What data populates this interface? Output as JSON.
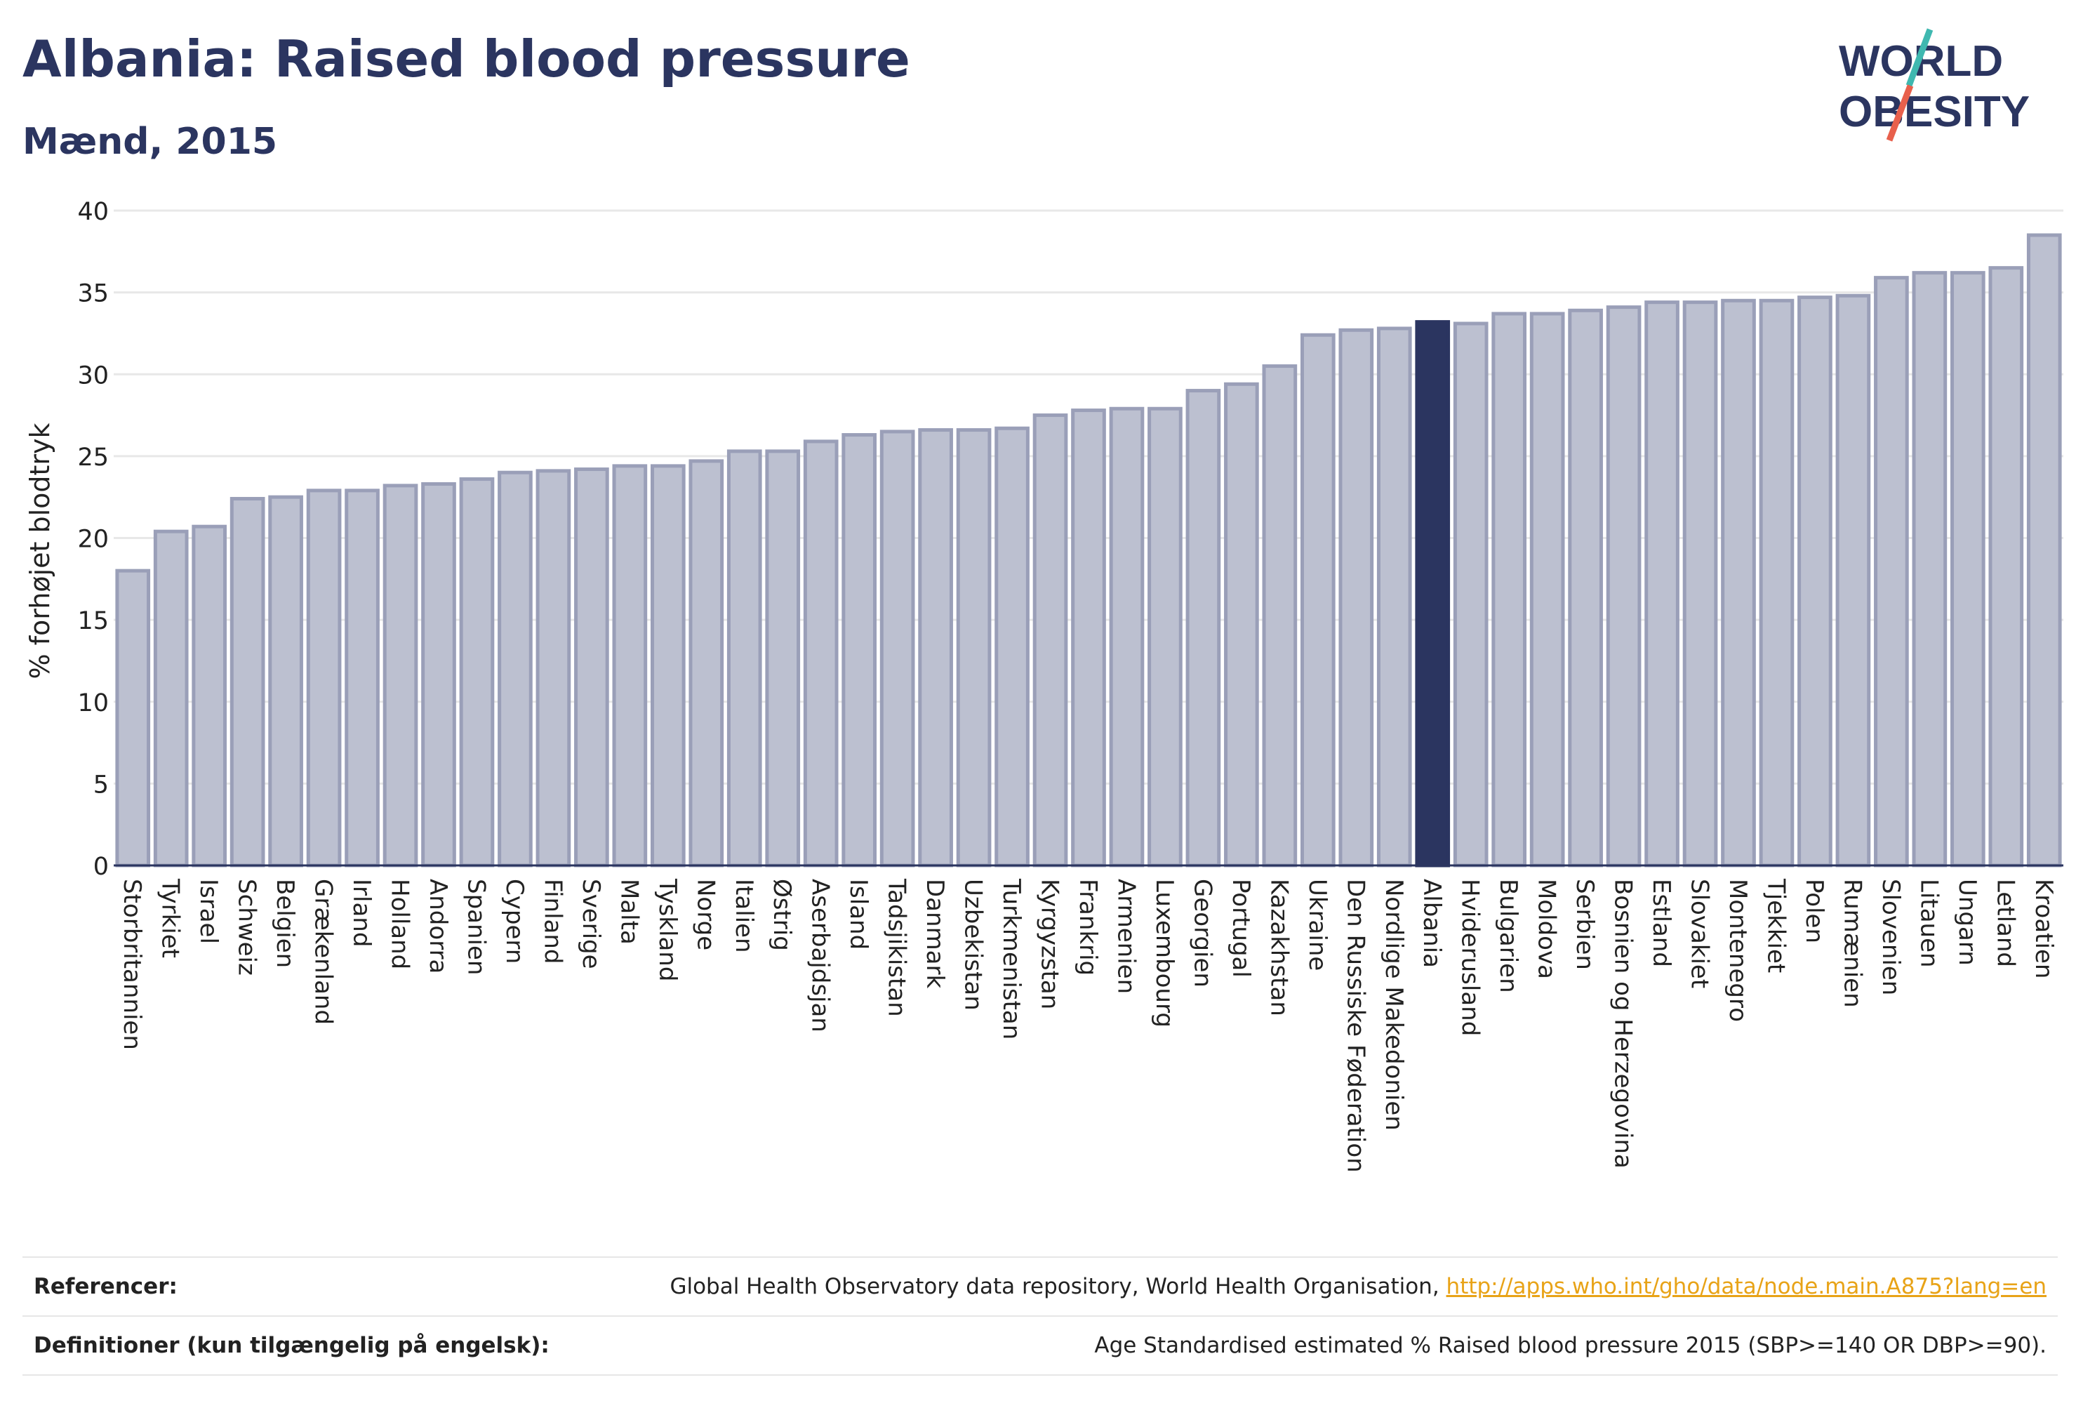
{
  "header": {
    "title": "Albania: Raised blood pressure",
    "subtitle": "Mænd, 2015"
  },
  "logo": {
    "line1": "WORLD",
    "line2": "OBESITY",
    "slash_color_top": "#3fb8b0",
    "slash_color_bottom": "#e8604c"
  },
  "colors": {
    "bar": "#bcc0d0",
    "bar_border": "#9a9fb8",
    "highlight": "#2b3560",
    "grid": "#e8e8e8",
    "axis_text": "#222222"
  },
  "chart_data": {
    "type": "bar",
    "ylabel": "% forhøjet blodtryk",
    "xlabel": "",
    "ylim": [
      0,
      40
    ],
    "yticks": [
      0,
      5,
      10,
      15,
      20,
      25,
      30,
      35,
      40
    ],
    "grid": true,
    "highlight": "Albania",
    "categories": [
      "Storbritannien",
      "Tyrkiet",
      "Israel",
      "Schweiz",
      "Belgien",
      "Grækenland",
      "Irland",
      "Holland",
      "Andorra",
      "Spanien",
      "Cypern",
      "Finland",
      "Sverige",
      "Malta",
      "Tyskland",
      "Norge",
      "Italien",
      "Østrig",
      "Aserbajdsjan",
      "Island",
      "Tadsjikistan",
      "Danmark",
      "Uzbekistan",
      "Turkmenistan",
      "Kyrgyzstan",
      "Frankrig",
      "Armenien",
      "Luxembourg",
      "Georgien",
      "Portugal",
      "Kazakhstan",
      "Ukraine",
      "Den Russiske Føderation",
      "Nordlige Makedonien",
      "Albania",
      "Hviderusland",
      "Bulgarien",
      "Moldova",
      "Serbien",
      "Bosnien og Herzegovina",
      "Estland",
      "Slovakiet",
      "Montenegro",
      "Tjekkiet",
      "Polen",
      "Rumænien",
      "Slovenien",
      "Litauen",
      "Ungarn",
      "Letland",
      "Kroatien"
    ],
    "values": [
      18.0,
      20.4,
      20.7,
      22.4,
      22.5,
      22.9,
      22.9,
      23.2,
      23.3,
      23.6,
      24.0,
      24.1,
      24.2,
      24.4,
      24.4,
      24.7,
      25.3,
      25.3,
      25.9,
      26.3,
      26.5,
      26.6,
      26.6,
      26.7,
      27.5,
      27.8,
      27.9,
      27.9,
      29.0,
      29.4,
      30.5,
      32.4,
      32.7,
      32.8,
      33.2,
      33.1,
      33.7,
      33.7,
      33.9,
      34.1,
      34.4,
      34.4,
      34.5,
      34.5,
      34.7,
      34.8,
      35.9,
      36.2,
      36.2,
      36.5,
      38.5
    ]
  },
  "references": {
    "ref_label": "Referencer:",
    "ref_text": "Global Health Observatory data repository, World Health Organisation, ",
    "ref_link": "http://apps.who.int/gho/data/node.main.A875?lang=en",
    "def_label": "Definitioner (kun tilgængelig på engelsk):",
    "def_text": "Age Standardised estimated % Raised blood pressure 2015 (SBP>=140 OR DBP>=90)."
  }
}
